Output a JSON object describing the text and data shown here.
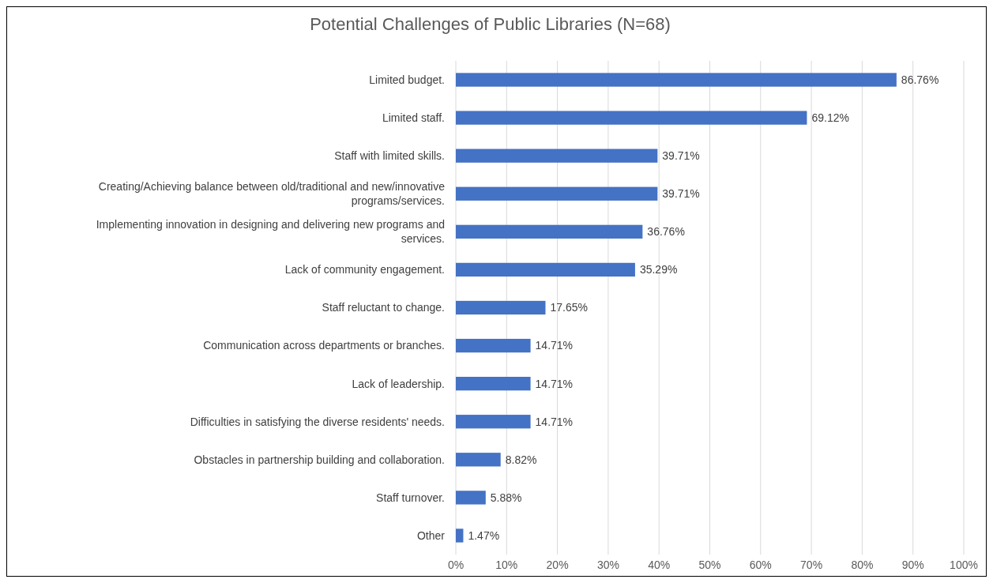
{
  "chart_data": {
    "type": "bar",
    "orientation": "horizontal",
    "title": "Potential Challenges of Public Libraries (N=68)",
    "categories": [
      "Limited budget.",
      "Limited staff.",
      "Staff with limited skills.",
      "Creating/Achieving balance between old/traditional and new/innovative programs/services.",
      "Implementing innovation in designing and delivering new programs and services.",
      "Lack of community engagement.",
      "Staff reluctant to change.",
      "Communication across departments or branches.",
      "Lack of leadership.",
      "Difficulties in satisfying the diverse residents' needs.",
      "Obstacles in partnership building and collaboration.",
      "Staff turnover.",
      "Other"
    ],
    "values": [
      86.76,
      69.12,
      39.71,
      39.71,
      36.76,
      35.29,
      17.65,
      14.71,
      14.71,
      14.71,
      8.82,
      5.88,
      1.47
    ],
    "value_labels": [
      "86.76%",
      "69.12%",
      "39.71%",
      "39.71%",
      "36.76%",
      "35.29%",
      "17.65%",
      "14.71%",
      "14.71%",
      "14.71%",
      "8.82%",
      "5.88%",
      "1.47%"
    ],
    "color": "#4472c4",
    "xlim": [
      0,
      100
    ],
    "xticks": [
      {
        "value": 0,
        "label": "0%"
      },
      {
        "value": 10,
        "label": "10%"
      },
      {
        "value": 20,
        "label": "20%"
      },
      {
        "value": 30,
        "label": "30%"
      },
      {
        "value": 40,
        "label": "40%"
      },
      {
        "value": 50,
        "label": "50%"
      },
      {
        "value": 60,
        "label": "60%"
      },
      {
        "value": 70,
        "label": "70%"
      },
      {
        "value": 80,
        "label": "80%"
      },
      {
        "value": 90,
        "label": "90%"
      },
      {
        "value": 100,
        "label": "100%"
      }
    ],
    "grid": "x"
  }
}
